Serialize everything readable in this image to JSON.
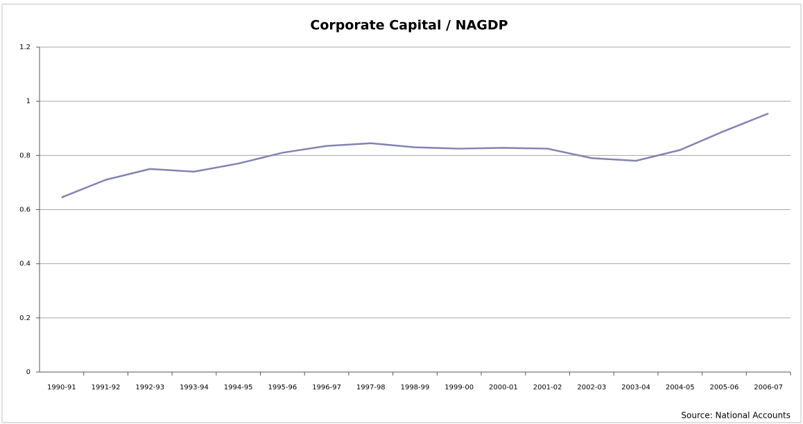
{
  "chart_data": {
    "type": "line",
    "title": "Corporate Capital / NAGDP",
    "categories": [
      "1990-91",
      "1991-92",
      "1992-93",
      "1993-94",
      "1994-95",
      "1995-96",
      "1996-97",
      "1997-98",
      "1998-99",
      "1999-00",
      "2000-01",
      "2001-02",
      "2002-03",
      "2003-04",
      "2004-05",
      "2005-06",
      "2006-07"
    ],
    "series": [
      {
        "name": "Corporate Capital / NAGDP",
        "color": "#8282b4",
        "values": [
          0.645,
          0.71,
          0.75,
          0.74,
          0.77,
          0.81,
          0.835,
          0.845,
          0.83,
          0.825,
          0.828,
          0.825,
          0.79,
          0.78,
          0.82,
          0.89,
          0.955
        ]
      }
    ],
    "ylim": [
      0,
      1.2
    ],
    "yticks": [
      0,
      0.2,
      0.4,
      0.6,
      0.8,
      1,
      1.2
    ],
    "grid": true,
    "annotation": "Source: National Accounts"
  }
}
